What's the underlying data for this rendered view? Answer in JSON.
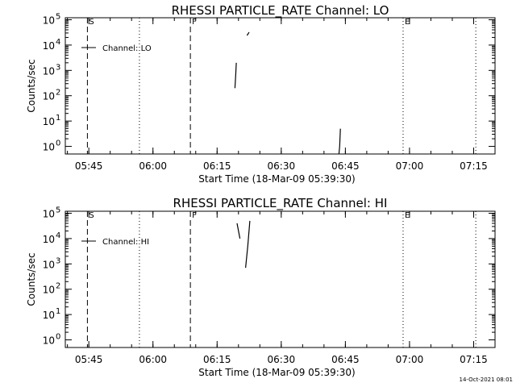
{
  "footer": {
    "timestamp": "14-Oct-2021 08:01"
  },
  "chart_data": [
    {
      "type": "line",
      "title": "RHESSI PARTICLE_RATE Channel: LO",
      "xlabel": "Start Time (18-Mar-09 05:39:30)",
      "ylabel": "Counts/sec",
      "x_ticks": [
        "05:45",
        "06:00",
        "06:15",
        "06:30",
        "06:45",
        "07:00",
        "07:15"
      ],
      "x_range": [
        "05:39:30",
        "07:20:00"
      ],
      "y_scale": "log",
      "ylim": [
        0.5,
        120000
      ],
      "y_ticks": [
        {
          "value": 1,
          "base": "10",
          "exp": "0"
        },
        {
          "value": 10,
          "base": "10",
          "exp": "1"
        },
        {
          "value": 100,
          "base": "10",
          "exp": "2"
        },
        {
          "value": 1000,
          "base": "10",
          "exp": "3"
        },
        {
          "value": 10000,
          "base": "10",
          "exp": "4"
        },
        {
          "value": 100000,
          "base": "10",
          "exp": "5"
        }
      ],
      "legend": "Channel: LO",
      "markers": [
        {
          "time": "05:44:40",
          "style": "dashed",
          "label": "S"
        },
        {
          "time": "05:56:50",
          "style": "dotted",
          "label": ""
        },
        {
          "time": "06:08:45",
          "style": "dashed",
          "label": "F"
        },
        {
          "time": "06:58:30",
          "style": "dotted",
          "label": "E"
        },
        {
          "time": "07:15:30",
          "style": "dotted",
          "label": ""
        }
      ],
      "series": [
        {
          "x": [
            "06:19:10",
            "06:19:20",
            "06:19:30"
          ],
          "y": [
            200,
            600,
            2000
          ]
        },
        {
          "x": [
            "06:22:00",
            "06:22:15",
            "06:22:30"
          ],
          "y": [
            24000,
            28000,
            32000
          ]
        },
        {
          "x": [
            "06:43:30",
            "06:43:40",
            "06:43:50"
          ],
          "y": [
            0.5,
            1,
            5
          ]
        }
      ]
    },
    {
      "type": "line",
      "title": "RHESSI PARTICLE_RATE Channel: HI",
      "xlabel": "Start Time (18-Mar-09 05:39:30)",
      "ylabel": "Counts/sec",
      "x_ticks": [
        "05:45",
        "06:00",
        "06:15",
        "06:30",
        "06:45",
        "07:00",
        "07:15"
      ],
      "x_range": [
        "05:39:30",
        "07:20:00"
      ],
      "y_scale": "log",
      "ylim": [
        0.5,
        120000
      ],
      "y_ticks": [
        {
          "value": 1,
          "base": "10",
          "exp": "0"
        },
        {
          "value": 10,
          "base": "10",
          "exp": "1"
        },
        {
          "value": 100,
          "base": "10",
          "exp": "2"
        },
        {
          "value": 1000,
          "base": "10",
          "exp": "3"
        },
        {
          "value": 10000,
          "base": "10",
          "exp": "4"
        },
        {
          "value": 100000,
          "base": "10",
          "exp": "5"
        }
      ],
      "legend": "Channel: HI",
      "markers": [
        {
          "time": "05:44:40",
          "style": "dashed",
          "label": "S"
        },
        {
          "time": "05:56:50",
          "style": "dotted",
          "label": ""
        },
        {
          "time": "06:08:45",
          "style": "dashed",
          "label": "F"
        },
        {
          "time": "06:58:30",
          "style": "dotted",
          "label": "E"
        },
        {
          "time": "07:15:30",
          "style": "dotted",
          "label": ""
        }
      ],
      "series": [
        {
          "x": [
            "06:19:40",
            "06:20:00",
            "06:20:20"
          ],
          "y": [
            40000,
            20000,
            10000
          ]
        },
        {
          "x": [
            "06:21:40",
            "06:22:10",
            "06:22:40"
          ],
          "y": [
            700,
            5000,
            50000
          ]
        }
      ]
    }
  ]
}
